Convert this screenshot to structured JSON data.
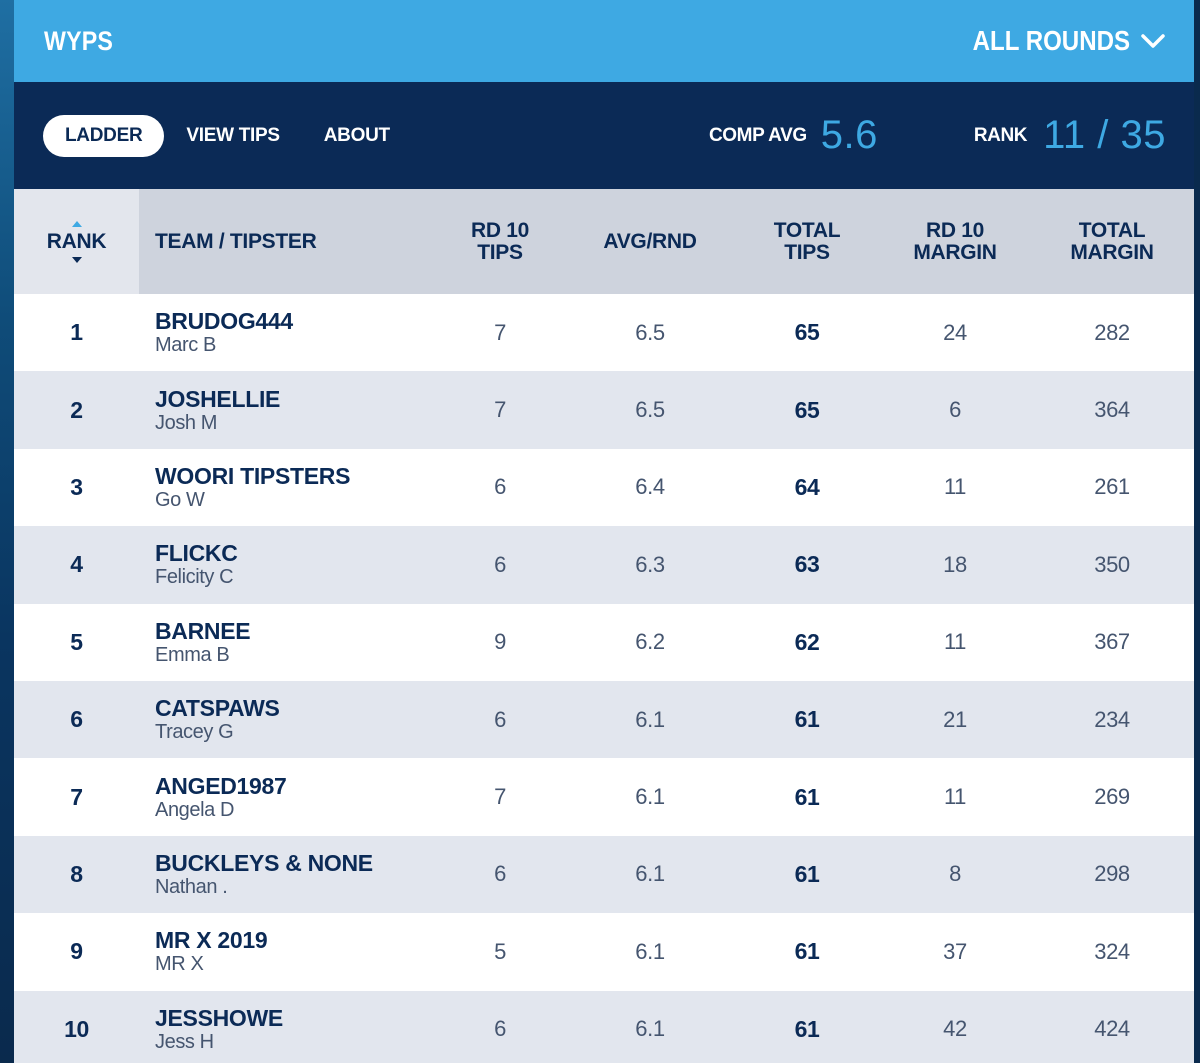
{
  "header": {
    "title": "WYPS",
    "rounds_label": "ALL ROUNDS"
  },
  "nav": {
    "tabs": [
      {
        "label": "LADDER",
        "active": true
      },
      {
        "label": "VIEW TIPS",
        "active": false
      },
      {
        "label": "ABOUT",
        "active": false
      }
    ],
    "comp_avg_label": "COMP AVG",
    "comp_avg_value": "5.6",
    "rank_label": "RANK",
    "rank_value": "11 / 35"
  },
  "table": {
    "columns": {
      "rank": "RANK",
      "team": "TEAM / TIPSTER",
      "rd_tips": [
        "RD 10",
        "TIPS"
      ],
      "avg": "AVG/RND",
      "total_tips": [
        "TOTAL",
        "TIPS"
      ],
      "rd_margin": [
        "RD 10",
        "MARGIN"
      ],
      "total_margin": [
        "TOTAL",
        "MARGIN"
      ]
    },
    "rows": [
      {
        "rank": "1",
        "team": "BRUDOG444",
        "tipster": "Marc B",
        "rd_tips": "7",
        "avg": "6.5",
        "total_tips": "65",
        "rd_margin": "24",
        "total_margin": "282"
      },
      {
        "rank": "2",
        "team": "JOSHELLIE",
        "tipster": "Josh M",
        "rd_tips": "7",
        "avg": "6.5",
        "total_tips": "65",
        "rd_margin": "6",
        "total_margin": "364"
      },
      {
        "rank": "3",
        "team": "WOORI TIPSTERS",
        "tipster": "Go W",
        "rd_tips": "6",
        "avg": "6.4",
        "total_tips": "64",
        "rd_margin": "11",
        "total_margin": "261"
      },
      {
        "rank": "4",
        "team": "FLICKC",
        "tipster": "Felicity C",
        "rd_tips": "6",
        "avg": "6.3",
        "total_tips": "63",
        "rd_margin": "18",
        "total_margin": "350"
      },
      {
        "rank": "5",
        "team": "BARNEE",
        "tipster": "Emma B",
        "rd_tips": "9",
        "avg": "6.2",
        "total_tips": "62",
        "rd_margin": "11",
        "total_margin": "367"
      },
      {
        "rank": "6",
        "team": "CATSPAWS",
        "tipster": "Tracey G",
        "rd_tips": "6",
        "avg": "6.1",
        "total_tips": "61",
        "rd_margin": "21",
        "total_margin": "234"
      },
      {
        "rank": "7",
        "team": "ANGED1987",
        "tipster": "Angela D",
        "rd_tips": "7",
        "avg": "6.1",
        "total_tips": "61",
        "rd_margin": "11",
        "total_margin": "269"
      },
      {
        "rank": "8",
        "team": "BUCKLEYS & NONE",
        "tipster": "Nathan .",
        "rd_tips": "6",
        "avg": "6.1",
        "total_tips": "61",
        "rd_margin": "8",
        "total_margin": "298"
      },
      {
        "rank": "9",
        "team": "MR X 2019",
        "tipster": "MR X",
        "rd_tips": "5",
        "avg": "6.1",
        "total_tips": "61",
        "rd_margin": "37",
        "total_margin": "324"
      },
      {
        "rank": "10",
        "team": "JESSHOWE",
        "tipster": "Jess H",
        "rd_tips": "6",
        "avg": "6.1",
        "total_tips": "61",
        "rd_margin": "42",
        "total_margin": "424"
      }
    ]
  },
  "colors": {
    "header_blue": "#3ea9e3",
    "navy": "#0b2a56",
    "row_alt": "#e2e6ee",
    "header_row": "#ced3dd"
  }
}
